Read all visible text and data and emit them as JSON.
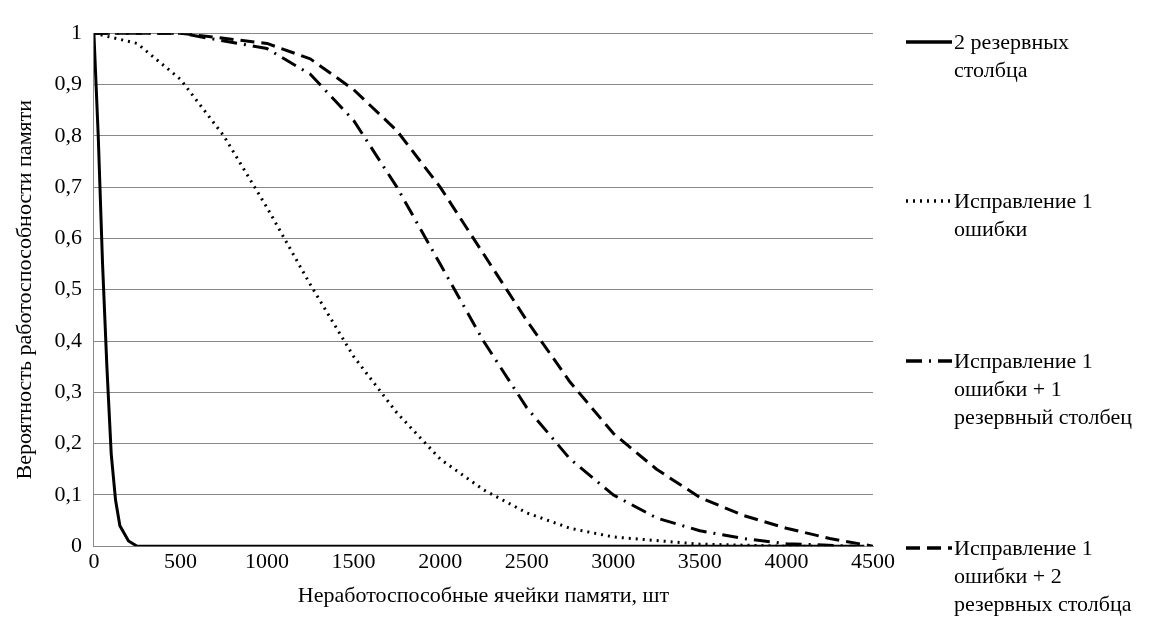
{
  "chart_data": {
    "type": "line",
    "xlabel": "Неработоспособные ячейки памяти, шт",
    "ylabel": "Вероятность работоспособности памяти",
    "xlim": [
      0,
      4500
    ],
    "xticks": [
      0,
      500,
      1000,
      1500,
      2000,
      2500,
      3000,
      3500,
      4000,
      4500
    ],
    "ylim": [
      0,
      1
    ],
    "yticks": [
      0,
      {
        "value": 0.1,
        "label": "0,1"
      },
      {
        "value": 0.2,
        "label": "0,2"
      },
      {
        "value": 0.3,
        "label": "0,3"
      },
      {
        "value": 0.4,
        "label": "0,4"
      },
      {
        "value": 0.5,
        "label": "0,5"
      },
      {
        "value": 0.6,
        "label": "0,6"
      },
      {
        "value": 0.7,
        "label": "0,7"
      },
      {
        "value": 0.8,
        "label": "0,8"
      },
      {
        "value": 0.9,
        "label": "0,9"
      },
      1
    ],
    "grid": "y",
    "legend": "right",
    "marker": "none",
    "series": [
      {
        "name": "2 резервных столбца",
        "color": "#000000",
        "line_style": "solid",
        "x": [
          0,
          25,
          50,
          75,
          100,
          125,
          150,
          200,
          250,
          4450
        ],
        "values": [
          1,
          0.8,
          0.55,
          0.35,
          0.18,
          0.09,
          0.04,
          0.01,
          0,
          0
        ]
      },
      {
        "name": "Исправление 1 ошибки",
        "color": "#000000",
        "line_style": "dotted",
        "x": [
          0,
          250,
          500,
          750,
          1000,
          1250,
          1500,
          1750,
          2000,
          2250,
          2500,
          2750,
          3000,
          3500,
          4000,
          4300
        ],
        "values": [
          1,
          0.98,
          0.91,
          0.8,
          0.66,
          0.51,
          0.37,
          0.26,
          0.17,
          0.11,
          0.065,
          0.035,
          0.018,
          0.004,
          0,
          0
        ]
      },
      {
        "name": "Исправление 1 ошибки + 1 резервный столбец",
        "color": "#000000",
        "line_style": "dashdot",
        "x": [
          0,
          500,
          1000,
          1250,
          1500,
          1750,
          2000,
          2250,
          2500,
          2750,
          3000,
          3250,
          3500,
          3750,
          4000,
          4400
        ],
        "values": [
          1,
          1,
          0.97,
          0.92,
          0.83,
          0.7,
          0.55,
          0.4,
          0.27,
          0.17,
          0.1,
          0.055,
          0.03,
          0.015,
          0.005,
          0
        ]
      },
      {
        "name": "Исправление 1 ошибки + 2 резервных столбца",
        "color": "#000000",
        "line_style": "dashed",
        "x": [
          0,
          500,
          1000,
          1250,
          1500,
          1750,
          2000,
          2250,
          2500,
          2750,
          3000,
          3250,
          3500,
          3750,
          4000,
          4250,
          4500
        ],
        "values": [
          1,
          1,
          0.98,
          0.95,
          0.89,
          0.81,
          0.7,
          0.57,
          0.44,
          0.32,
          0.22,
          0.15,
          0.095,
          0.06,
          0.035,
          0.015,
          0
        ]
      }
    ]
  }
}
